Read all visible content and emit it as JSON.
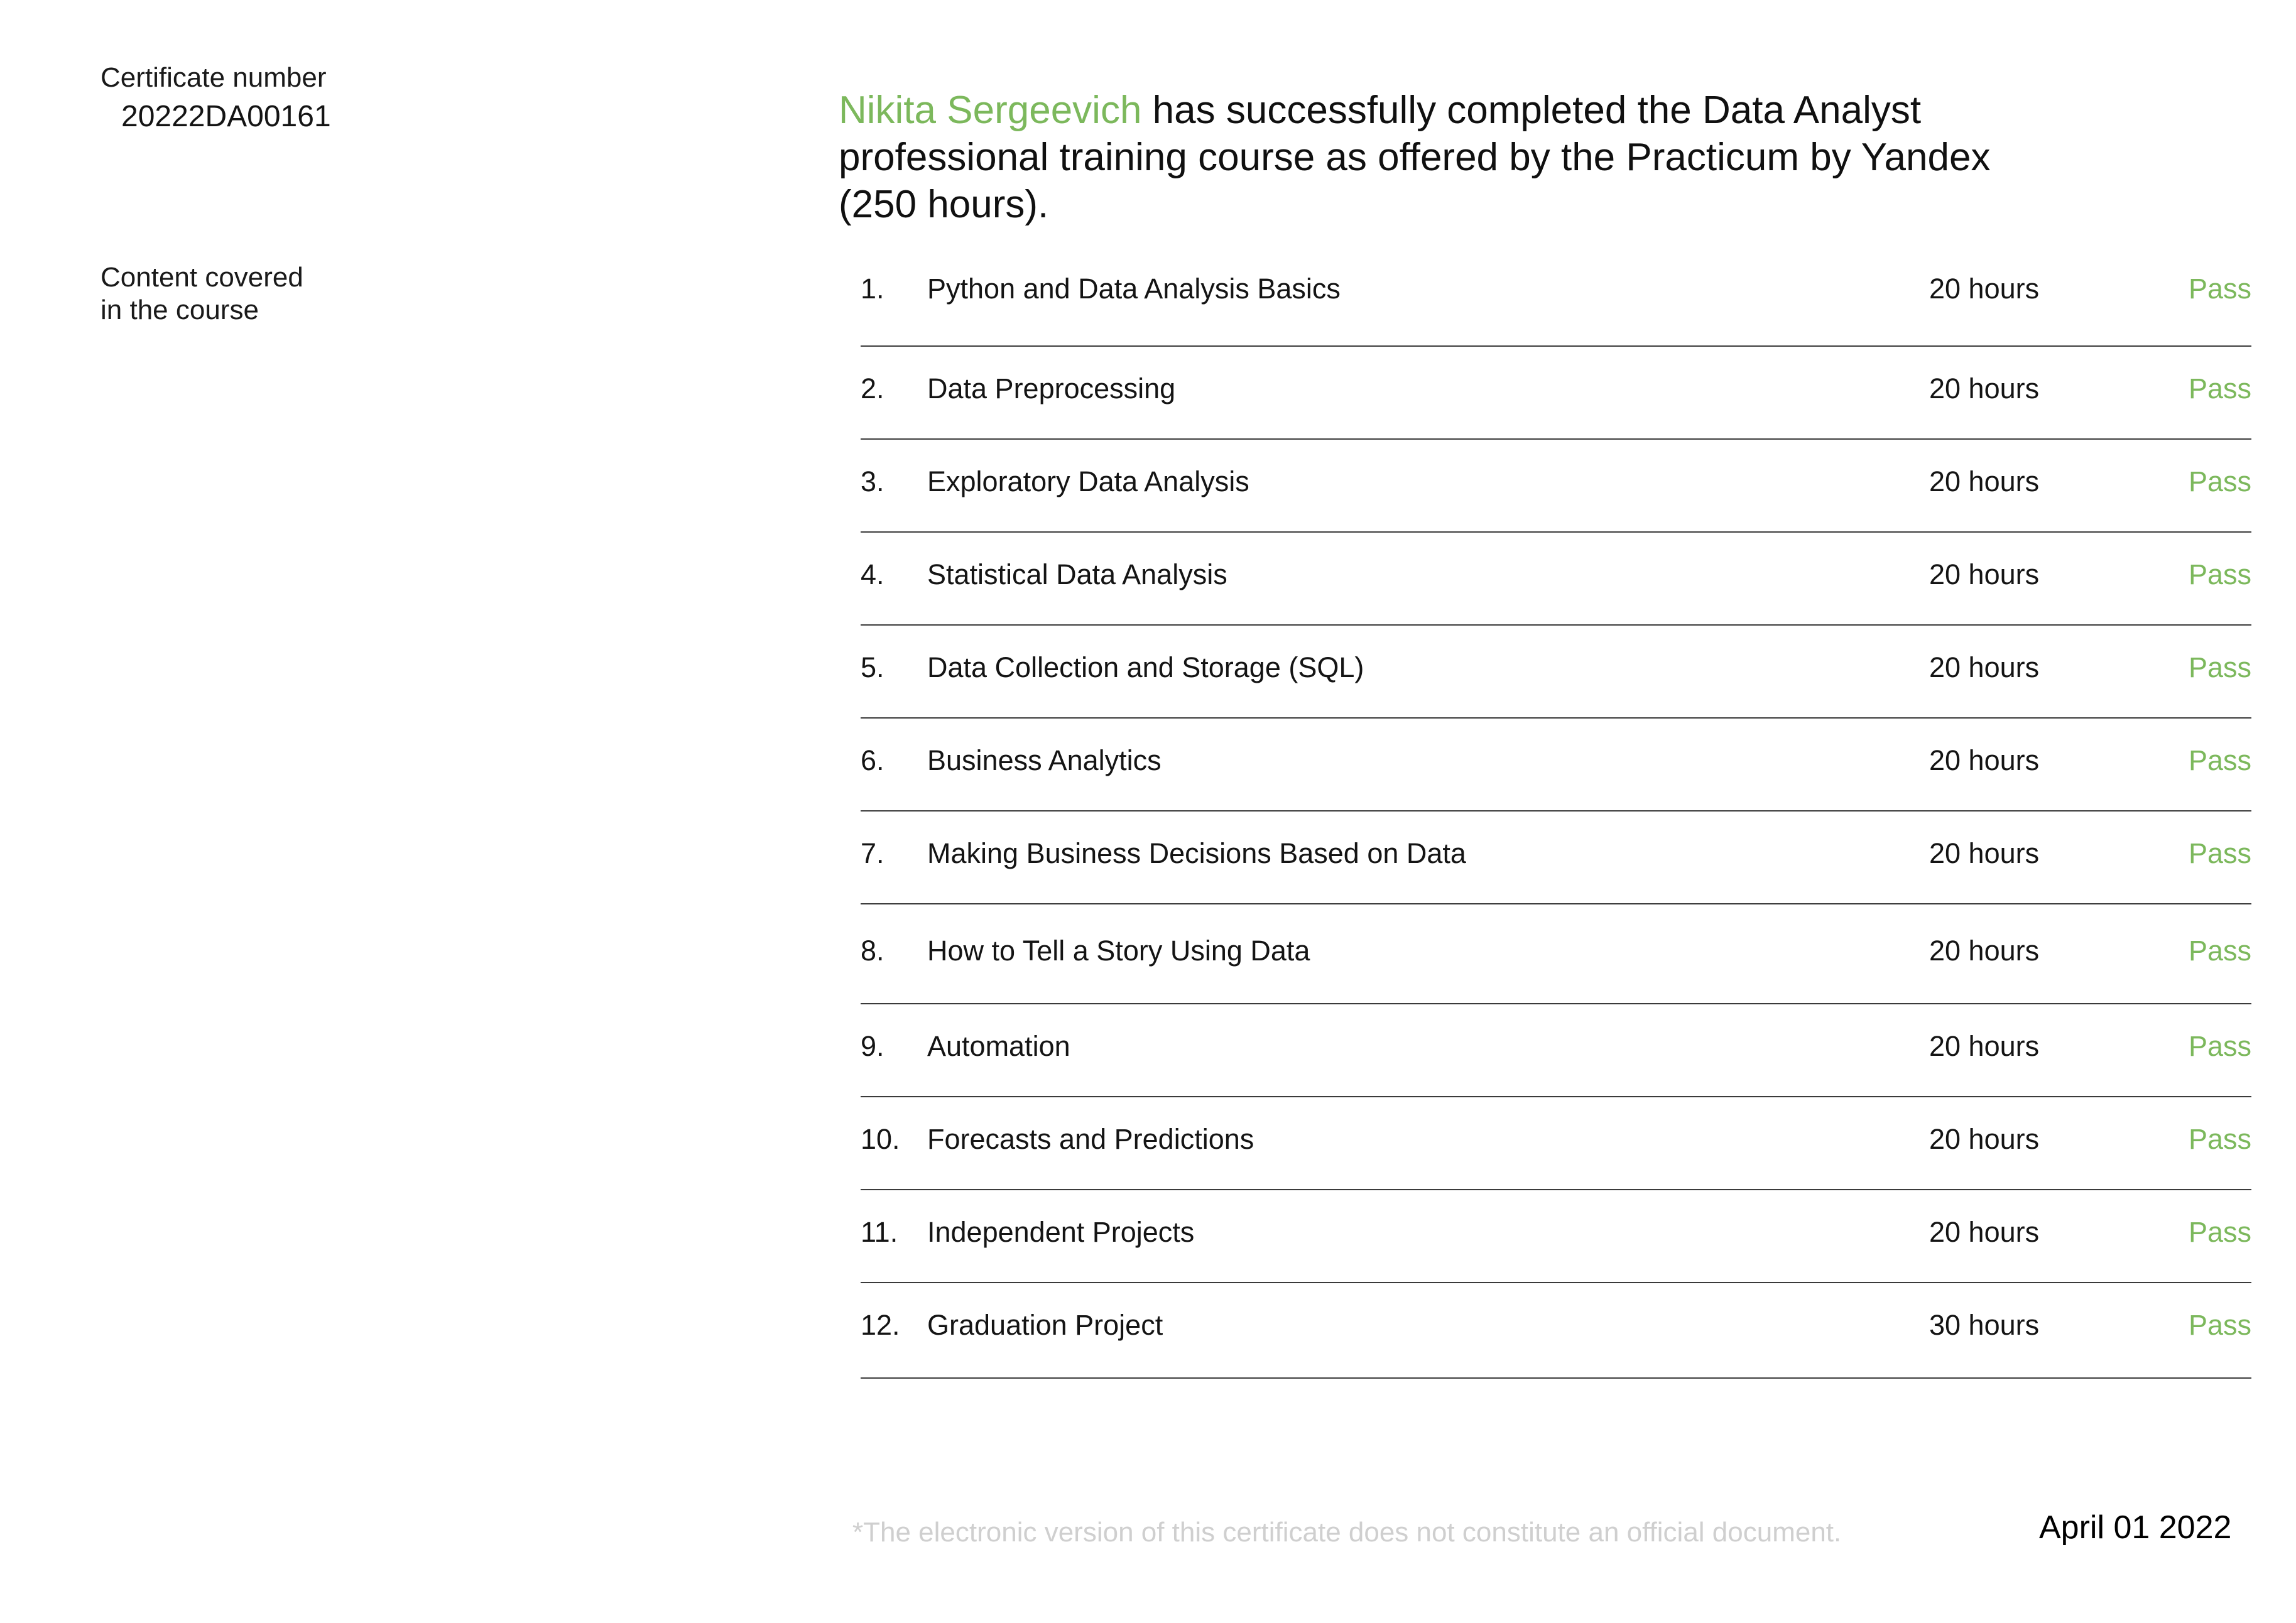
{
  "certificate": {
    "number_label": "Certificate number",
    "number": "20222DA00161"
  },
  "statement": {
    "recipient_name": "Nikita Sergeevich",
    "text": " has successfully completed the Data Analyst professional training course as offered by the Practicum by Yandex (250 hours)."
  },
  "content_label": "Content covered\nin the course",
  "courses": [
    {
      "num": "1.",
      "title": "Python and Data Analysis Basics",
      "hours": "20 hours",
      "grade": "Pass"
    },
    {
      "num": "2.",
      "title": "Data Preprocessing",
      "hours": "20 hours",
      "grade": "Pass"
    },
    {
      "num": "3.",
      "title": "Exploratory Data Analysis",
      "hours": "20 hours",
      "grade": "Pass"
    },
    {
      "num": "4.",
      "title": "Statistical Data Analysis",
      "hours": "20 hours",
      "grade": "Pass"
    },
    {
      "num": "5.",
      "title": "Data Collection and Storage (SQL)",
      "hours": "20 hours",
      "grade": "Pass"
    },
    {
      "num": "6.",
      "title": "Business Analytics",
      "hours": "20 hours",
      "grade": "Pass"
    },
    {
      "num": "7.",
      "title": "Making Business Decisions Based on Data",
      "hours": "20 hours",
      "grade": "Pass"
    },
    {
      "num": "8.",
      "title": "How to Tell a Story Using Data",
      "hours": "20 hours",
      "grade": "Pass"
    },
    {
      "num": "9.",
      "title": "Automation",
      "hours": "20 hours",
      "grade": "Pass"
    },
    {
      "num": "10.",
      "title": "Forecasts and Predictions",
      "hours": "20 hours",
      "grade": "Pass"
    },
    {
      "num": "11.",
      "title": "Independent Projects",
      "hours": "20 hours",
      "grade": "Pass"
    },
    {
      "num": "12.",
      "title": "Graduation Project",
      "hours": "30 hours",
      "grade": "Pass"
    }
  ],
  "footer": {
    "disclaimer": "*The electronic version of this certificate does not constitute an official document.",
    "date": "April 01 2022"
  },
  "colors": {
    "accent": "#7cb85c",
    "text": "#141414",
    "disclaimer": "#cfcfcf"
  }
}
